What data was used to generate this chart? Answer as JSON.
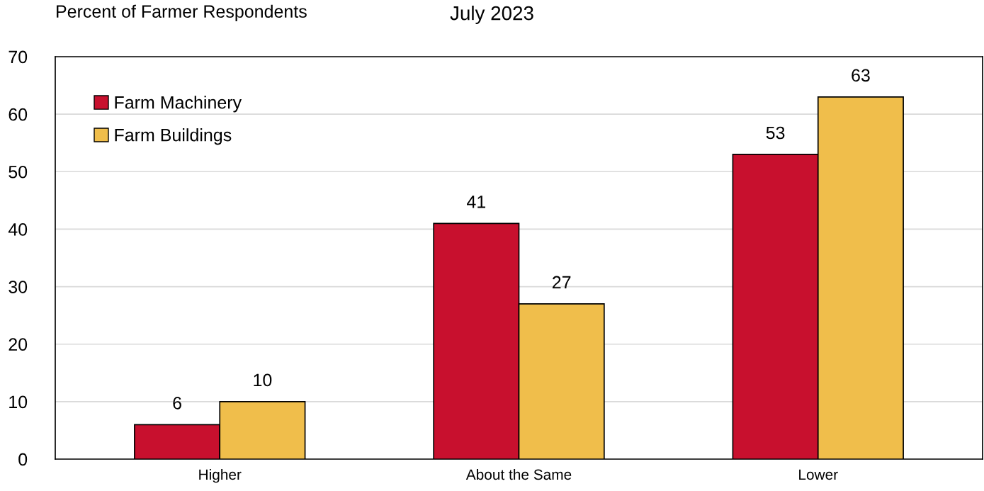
{
  "chart_data": {
    "type": "bar",
    "title": "July 2023",
    "ylabel": "Percent of Farmer Respondents",
    "categories": [
      "Higher",
      "About the Same",
      "Lower"
    ],
    "series": [
      {
        "name": "Farm Machinery",
        "color": "#c8102e",
        "values": [
          6,
          41,
          53
        ]
      },
      {
        "name": "Farm Buildings",
        "color": "#f0be4b",
        "values": [
          10,
          27,
          63
        ]
      }
    ],
    "ylim": [
      0,
      70
    ],
    "yticks": [
      0,
      10,
      20,
      30,
      40,
      50,
      60,
      70
    ],
    "grid": "y",
    "legend": "top left",
    "data_labels": true
  }
}
